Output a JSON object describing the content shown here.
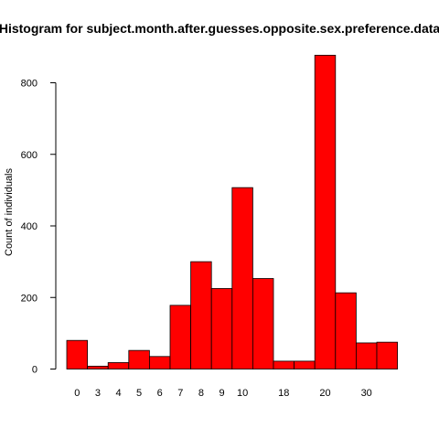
{
  "chart_data": {
    "type": "bar",
    "title": "Histogram for subject.month.after.guesses.opposite.sex.preference.data",
    "xlabel": "",
    "ylabel": "Count of individuals",
    "ylim": [
      0,
      900
    ],
    "y_ticks": [
      0,
      200,
      400,
      600,
      800
    ],
    "x_tick_labels": [
      "0",
      "3",
      "4",
      "5",
      "6",
      "7",
      "8",
      "9",
      "10",
      "18",
      "20",
      "30"
    ],
    "categories": [
      "0",
      "3",
      "4",
      "5",
      "6",
      "7",
      "8",
      "9",
      "10",
      "",
      "18",
      "",
      "20",
      "",
      "30",
      ""
    ],
    "values": [
      80,
      8,
      18,
      52,
      35,
      178,
      300,
      225,
      507,
      253,
      22,
      22,
      877,
      213,
      73,
      75
    ],
    "colors": {
      "bar_fill": "#ff0000",
      "bar_stroke": "#000000"
    },
    "grid": false,
    "legend": "none"
  }
}
